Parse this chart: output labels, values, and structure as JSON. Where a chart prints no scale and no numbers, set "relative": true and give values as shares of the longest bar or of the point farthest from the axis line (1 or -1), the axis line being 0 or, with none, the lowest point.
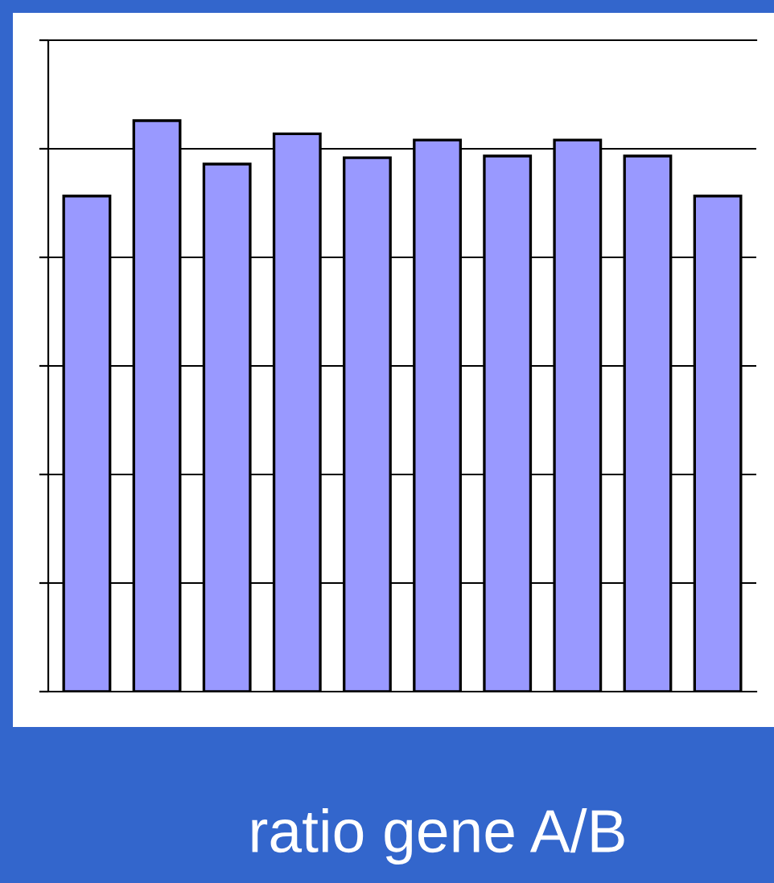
{
  "chart_data": {
    "type": "bar",
    "relative": true,
    "categories": [
      null,
      null,
      null,
      null,
      null,
      null,
      null,
      null,
      null,
      null
    ],
    "values": [
      0.868,
      1,
      0.924,
      0.977,
      0.935,
      0.966,
      0.938,
      0.966,
      0.938,
      0.868
    ],
    "color": "#9999ff",
    "grid": "y",
    "xlabel": "ratio gene A/B"
  }
}
